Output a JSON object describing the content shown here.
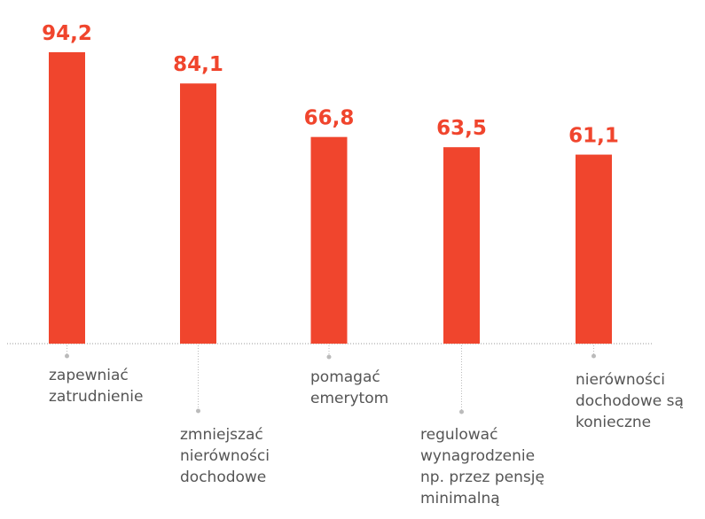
{
  "chart_data": {
    "type": "bar",
    "categories": [
      "zapewniać\nzatrudnienie",
      "zmniejszać\nnierówności\ndochodowe",
      "pomagać\nemerytom",
      "regulować\nwynagrodzenie\nnp. przez pensję\nminimalną",
      "nierówności\ndochodowe są\nkonieczne"
    ],
    "values": [
      94.2,
      84.1,
      66.8,
      63.5,
      61.1
    ],
    "value_labels": [
      "94,2",
      "84,1",
      "66,8",
      "63,5",
      "61,1"
    ],
    "color": "#f0452d",
    "ylim": [
      0,
      100
    ]
  }
}
